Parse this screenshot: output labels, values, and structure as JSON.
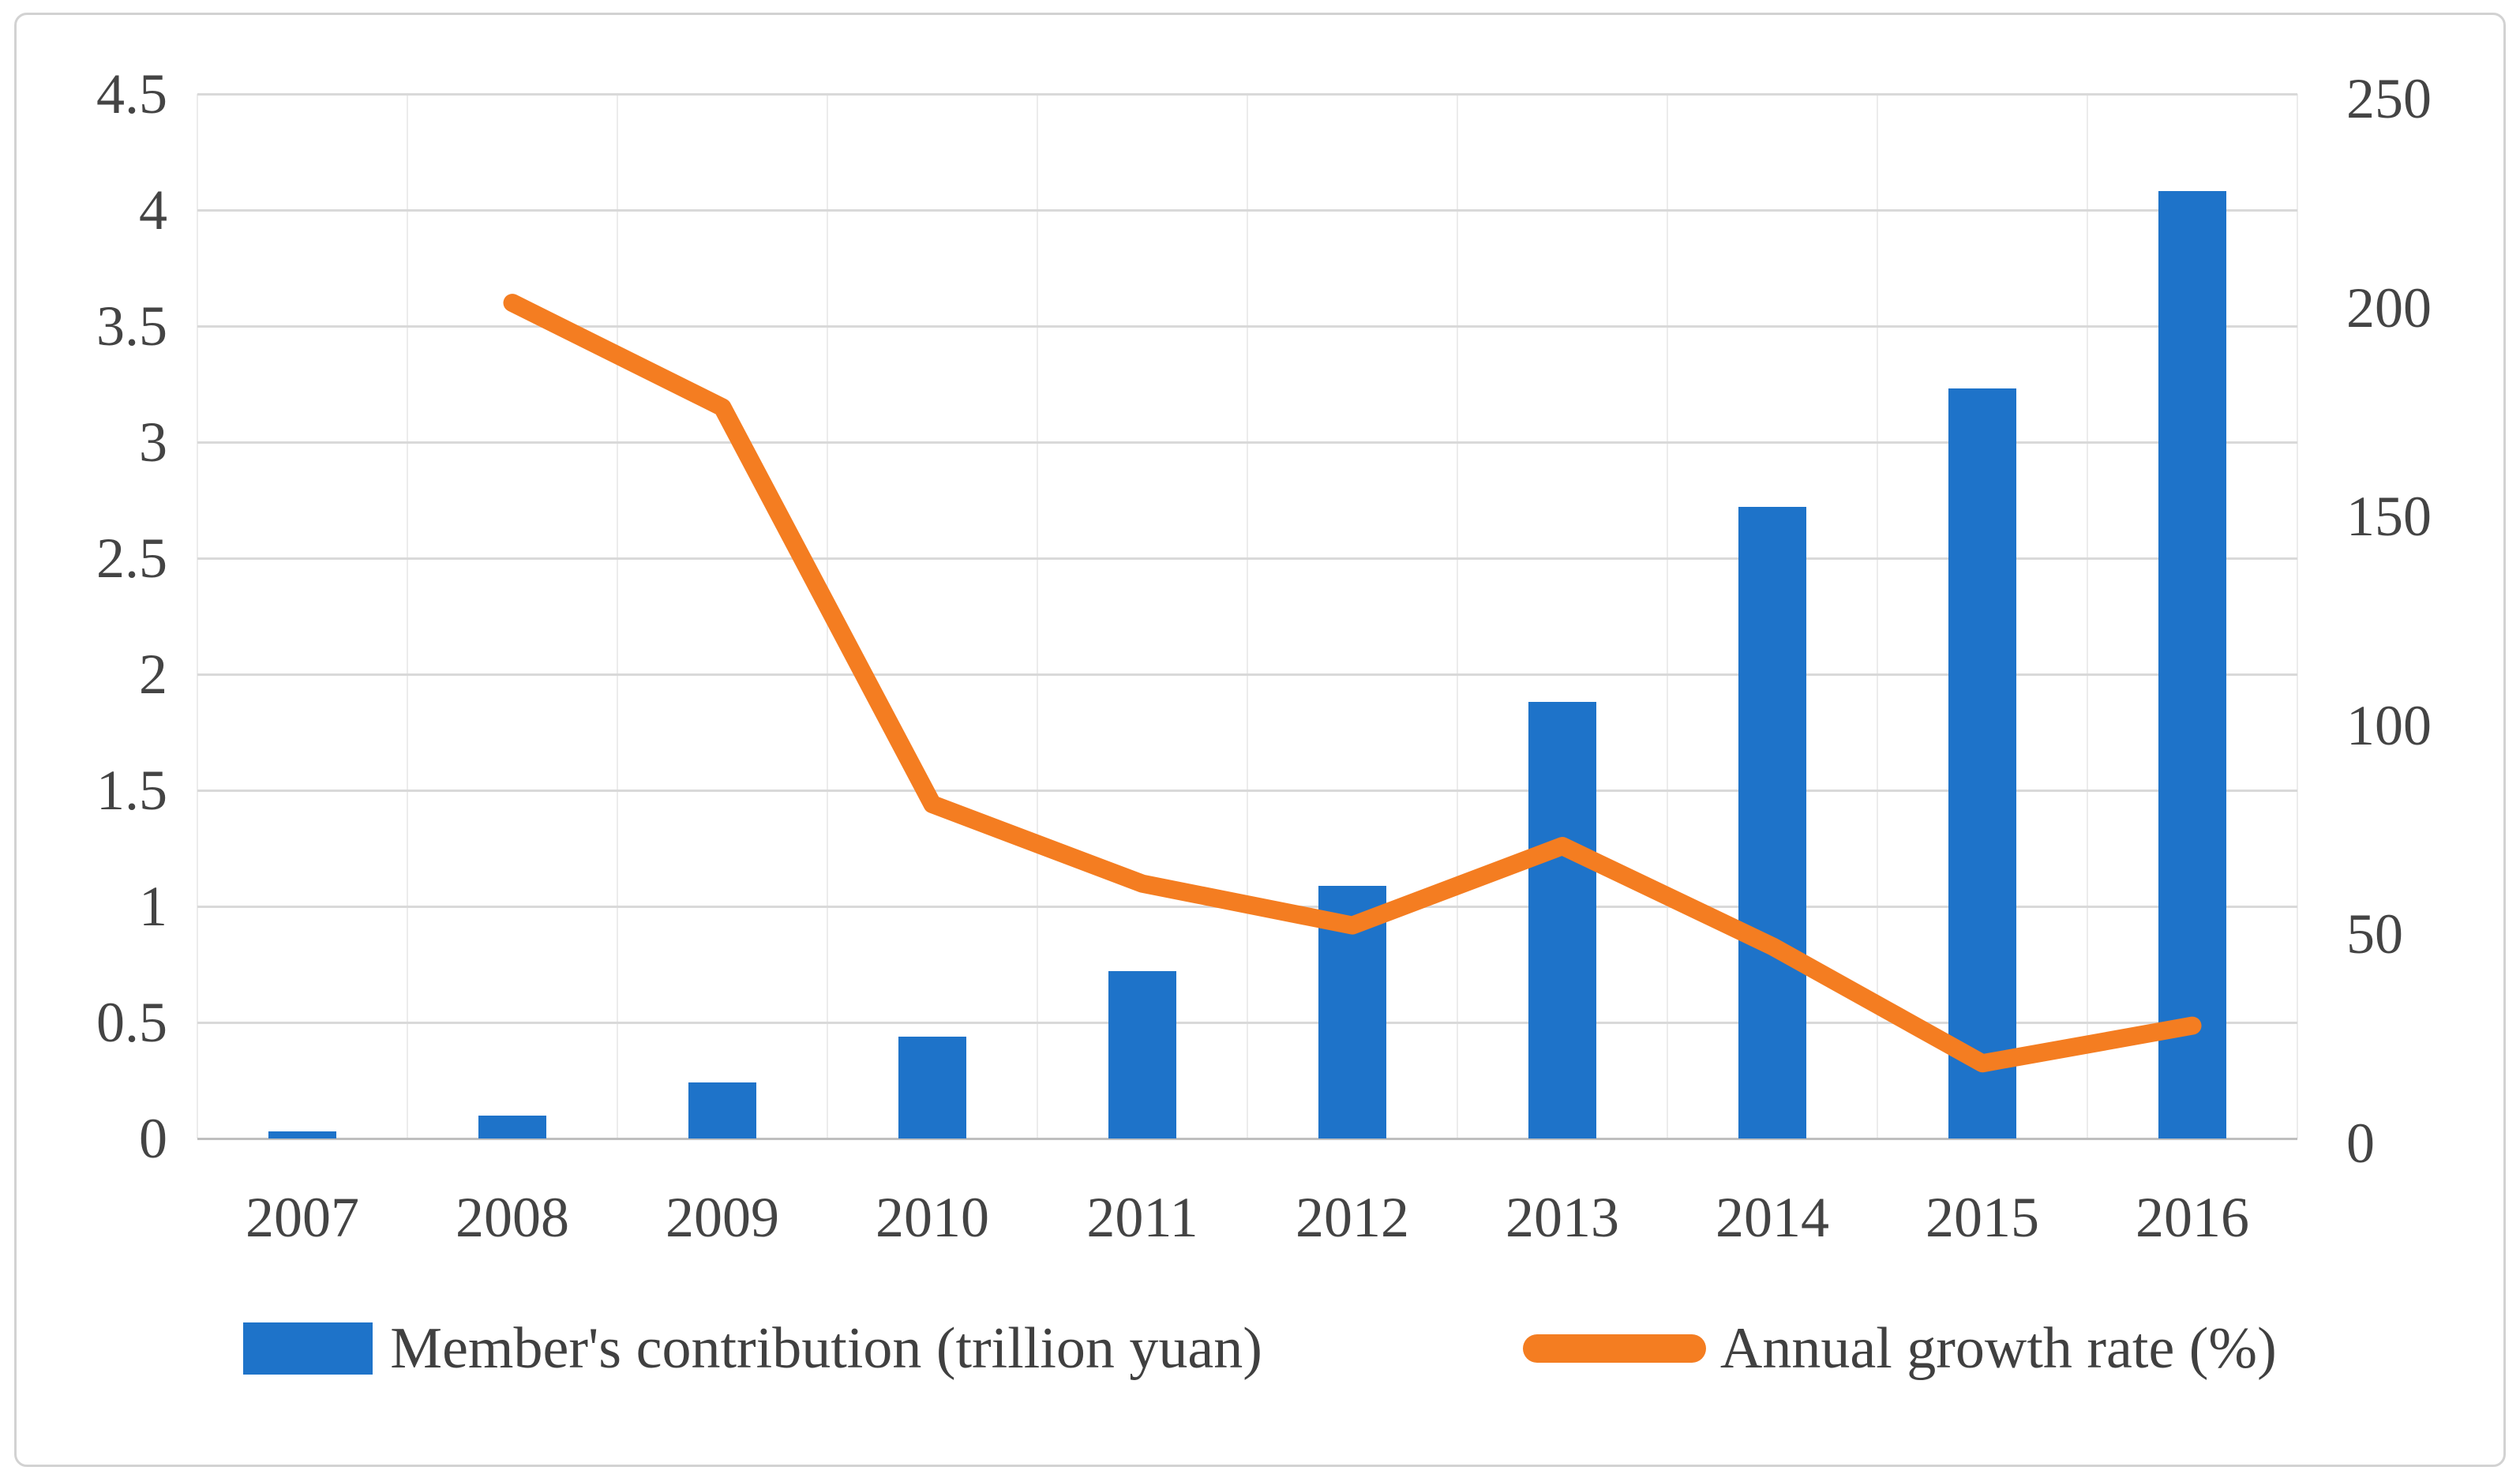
{
  "colors": {
    "bar": "#1e73c9",
    "line": "#f47d21",
    "gridline": "#d9d9d9",
    "baseline": "#bfbfbf",
    "vertical_gridline": "#ececec",
    "text": "#444444",
    "frame_border": "#d2d2d2",
    "background": "#ffffff"
  },
  "legend": {
    "bar_label": "Member's contribution (trillion yuan)",
    "line_label": "Annual growth rate (%)"
  },
  "chart_data": {
    "type": "bar+line combo",
    "categories": [
      "2007",
      "2008",
      "2009",
      "2010",
      "2011",
      "2012",
      "2013",
      "2014",
      "2015",
      "2016"
    ],
    "series": [
      {
        "name": "Member's contribution (trillion yuan)",
        "type": "bar",
        "axis": "left",
        "color": "#1e73c9",
        "values": [
          0.03,
          0.1,
          0.24,
          0.44,
          0.72,
          1.09,
          1.88,
          2.72,
          3.23,
          4.08
        ]
      },
      {
        "name": "Annual growth rate (%)",
        "type": "line",
        "axis": "right",
        "color": "#f47d21",
        "values": [
          null,
          200,
          175,
          80,
          61,
          51,
          70,
          46,
          18,
          27
        ]
      }
    ],
    "left_axis": {
      "min": 0,
      "max": 4.5,
      "step": 0.5,
      "tick_labels": [
        "0",
        "0.5",
        "1",
        "1.5",
        "2",
        "2.5",
        "3",
        "3.5",
        "4",
        "4.5"
      ]
    },
    "right_axis": {
      "min": 0,
      "max": 250,
      "step": 50,
      "tick_labels": [
        "0",
        "50",
        "100",
        "150",
        "200",
        "250"
      ]
    },
    "grid": true,
    "legend_position": "bottom",
    "title": "",
    "xlabel": "",
    "ylabel": ""
  }
}
